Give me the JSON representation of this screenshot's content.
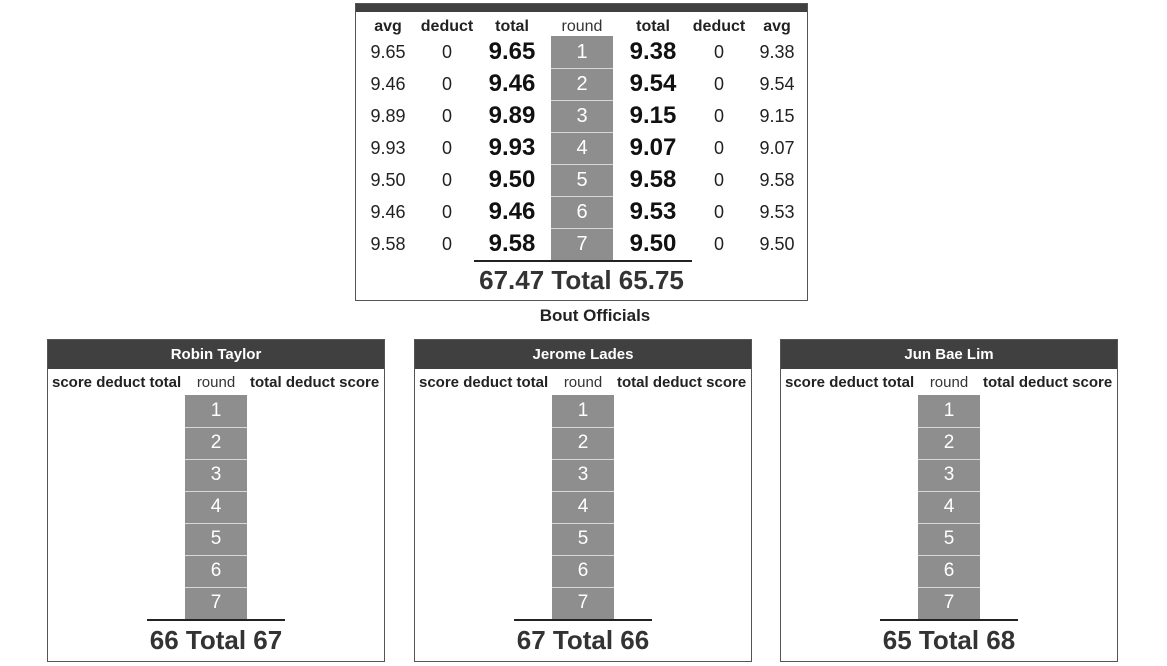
{
  "main": {
    "headers": {
      "avg_left": "avg",
      "deduct_left": "deduct",
      "total_left": "total",
      "round": "round",
      "total_right": "total",
      "deduct_right": "deduct",
      "avg_right": "avg"
    },
    "rows": [
      {
        "avgL": "9.65",
        "dedL": "0",
        "totL": "9.65",
        "round": "1",
        "totR": "9.38",
        "dedR": "0",
        "avgR": "9.38"
      },
      {
        "avgL": "9.46",
        "dedL": "0",
        "totL": "9.46",
        "round": "2",
        "totR": "9.54",
        "dedR": "0",
        "avgR": "9.54"
      },
      {
        "avgL": "9.89",
        "dedL": "0",
        "totL": "9.89",
        "round": "3",
        "totR": "9.15",
        "dedR": "0",
        "avgR": "9.15"
      },
      {
        "avgL": "9.93",
        "dedL": "0",
        "totL": "9.93",
        "round": "4",
        "totR": "9.07",
        "dedR": "0",
        "avgR": "9.07"
      },
      {
        "avgL": "9.50",
        "dedL": "0",
        "totL": "9.50",
        "round": "5",
        "totR": "9.58",
        "dedR": "0",
        "avgR": "9.58"
      },
      {
        "avgL": "9.46",
        "dedL": "0",
        "totL": "9.46",
        "round": "6",
        "totR": "9.53",
        "dedR": "0",
        "avgR": "9.53"
      },
      {
        "avgL": "9.58",
        "dedL": "0",
        "totL": "9.58",
        "round": "7",
        "totR": "9.50",
        "dedR": "0",
        "avgR": "9.50"
      }
    ],
    "total_line": "67.47 Total 65.75"
  },
  "bout_officials_title": "Bout Officials",
  "officials": [
    {
      "name": "Robin Taylor",
      "header_left": "score deduct total",
      "header_round": "round",
      "header_right": "total deduct score",
      "rounds": [
        "1",
        "2",
        "3",
        "4",
        "5",
        "6",
        "7"
      ],
      "total_line": "66 Total 67"
    },
    {
      "name": "Jerome Lades",
      "header_left": "score deduct total",
      "header_round": "round",
      "header_right": "total deduct score",
      "rounds": [
        "1",
        "2",
        "3",
        "4",
        "5",
        "6",
        "7"
      ],
      "total_line": "67 Total 66"
    },
    {
      "name": "Jun Bae Lim",
      "header_left": "score deduct total",
      "header_round": "round",
      "header_right": "total deduct score",
      "rounds": [
        "1",
        "2",
        "3",
        "4",
        "5",
        "6",
        "7"
      ],
      "total_line": "65 Total 68"
    }
  ]
}
